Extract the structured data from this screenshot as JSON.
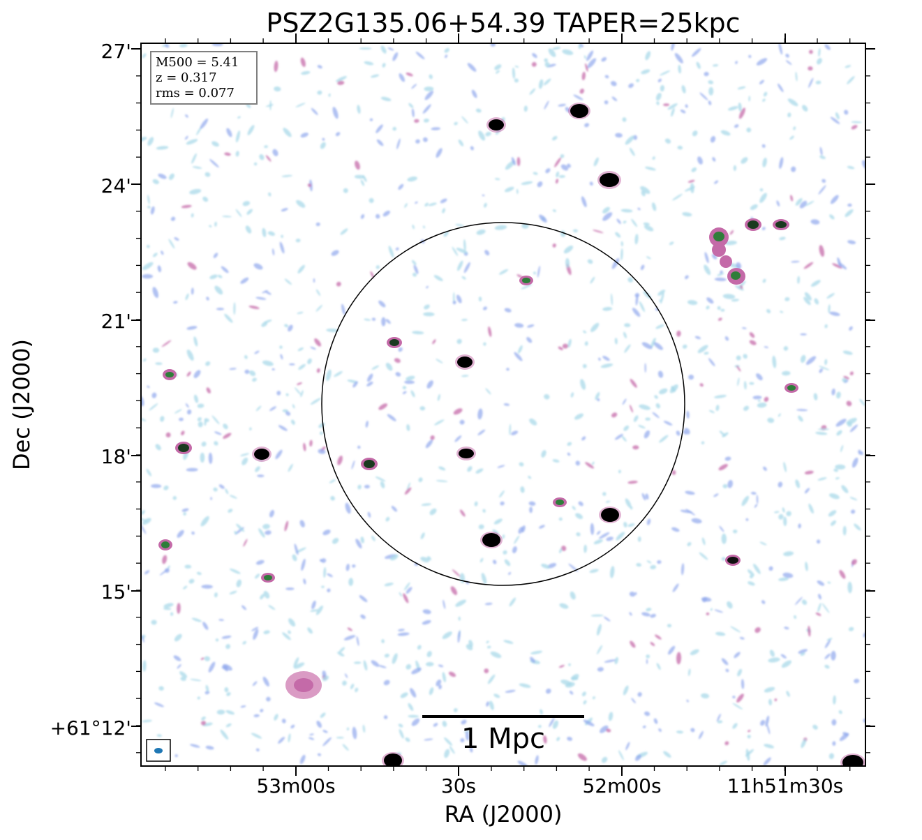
{
  "title": "PSZ2G135.06+54.39 TAPER=25kpc",
  "xlabel": "RA (J2000)",
  "ylabel": "Dec (J2000)",
  "xticks": [
    "53m00s",
    "30s",
    "52m00s",
    "11h51m30s"
  ],
  "yticks": [
    "27'",
    "24'",
    "21'",
    "18'",
    "15'",
    "+61°12'"
  ],
  "info": {
    "line1": "M500 = 5.41",
    "line2": "z = 0.317",
    "line3": "rms = 0.077"
  },
  "scalebar_label": "1 Mpc",
  "colors": {
    "faint": "#a8d8e8",
    "low": "#8fa6ec",
    "mid": "#c46aa8",
    "bright": "#2e7d3a",
    "peak": "#000000",
    "beam": "#1f77b4"
  }
}
